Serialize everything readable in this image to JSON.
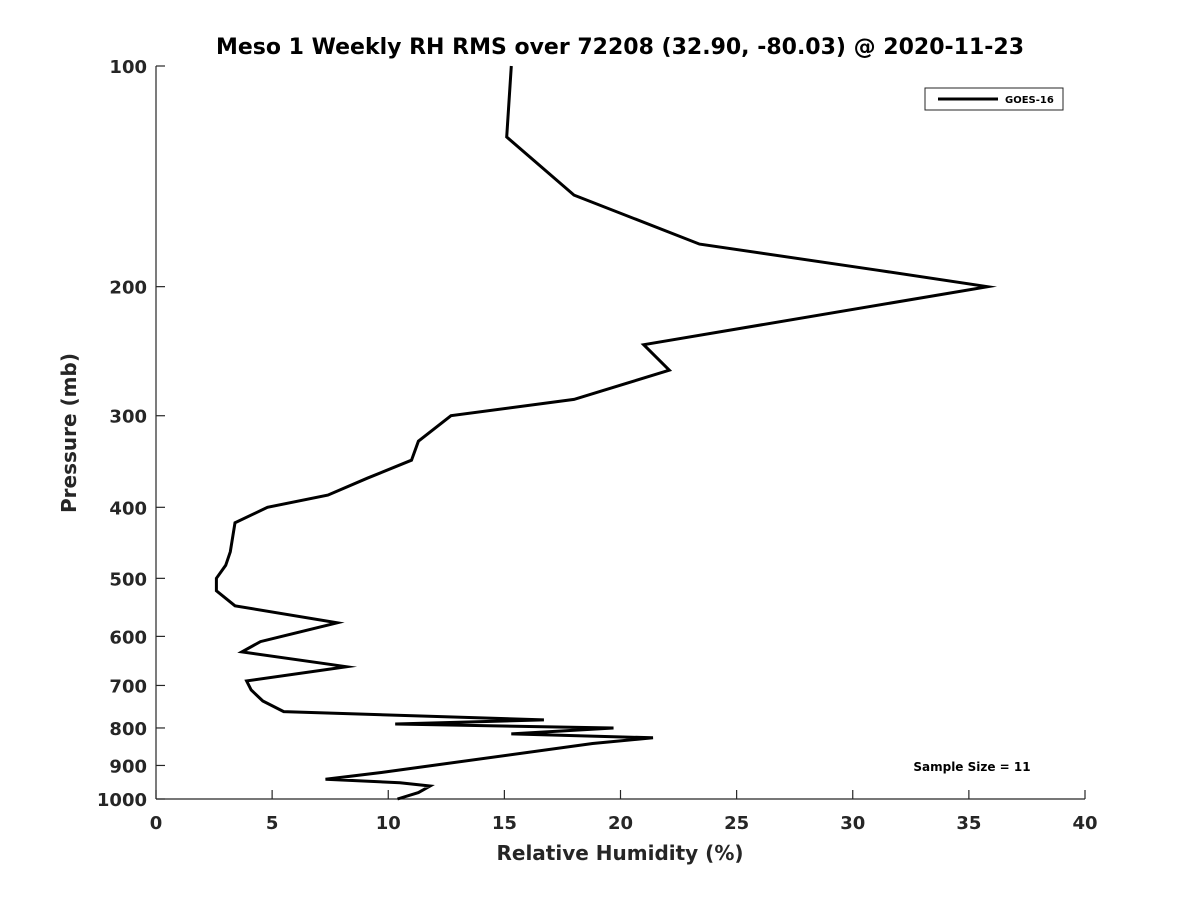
{
  "chart_data": {
    "type": "line",
    "title": "Meso 1 Weekly RH RMS over 72208 (32.90, -80.03) @ 2020-11-23",
    "xlabel": "Relative Humidity (%)",
    "ylabel": "Pressure (mb)",
    "xlim": [
      0,
      40
    ],
    "ylim": [
      100,
      1000
    ],
    "y_scale": "log",
    "y_reversed": true,
    "grid": false,
    "legend_position": "top-right",
    "x_ticks": [
      0,
      5,
      10,
      15,
      20,
      25,
      30,
      35,
      40
    ],
    "x_tick_labels": [
      "0",
      "5",
      "10",
      "15",
      "20",
      "25",
      "30",
      "35",
      "40"
    ],
    "y_ticks": [
      100,
      200,
      300,
      400,
      500,
      600,
      700,
      800,
      900,
      1000
    ],
    "y_tick_labels": [
      "100",
      "200",
      "300",
      "400",
      "500",
      "600",
      "700",
      "800",
      "900",
      "1000"
    ],
    "annotation": "Sample Size = 11",
    "series": [
      {
        "name": "GOES-16",
        "color": "#000000",
        "points": [
          [
            15.3,
            100
          ],
          [
            15.1,
            125
          ],
          [
            18.0,
            150
          ],
          [
            23.4,
            175
          ],
          [
            31.1,
            190
          ],
          [
            35.8,
            200
          ],
          [
            21.0,
            240
          ],
          [
            22.1,
            260
          ],
          [
            18.0,
            285
          ],
          [
            12.7,
            300
          ],
          [
            11.3,
            325
          ],
          [
            11.0,
            345
          ],
          [
            9.1,
            365
          ],
          [
            7.4,
            385
          ],
          [
            4.8,
            400
          ],
          [
            3.4,
            420
          ],
          [
            3.2,
            460
          ],
          [
            3.0,
            480
          ],
          [
            2.6,
            500
          ],
          [
            2.6,
            520
          ],
          [
            3.4,
            545
          ],
          [
            7.8,
            575
          ],
          [
            4.5,
            610
          ],
          [
            3.7,
            630
          ],
          [
            8.2,
            660
          ],
          [
            3.9,
            690
          ],
          [
            4.1,
            710
          ],
          [
            4.6,
            735
          ],
          [
            5.5,
            760
          ],
          [
            16.7,
            780
          ],
          [
            10.3,
            790
          ],
          [
            19.7,
            800
          ],
          [
            15.3,
            815
          ],
          [
            21.4,
            825
          ],
          [
            18.8,
            840
          ],
          [
            9.7,
            920
          ],
          [
            7.3,
            940
          ],
          [
            10.5,
            950
          ],
          [
            11.8,
            960
          ],
          [
            11.3,
            980
          ],
          [
            10.4,
            1000
          ]
        ]
      }
    ]
  }
}
